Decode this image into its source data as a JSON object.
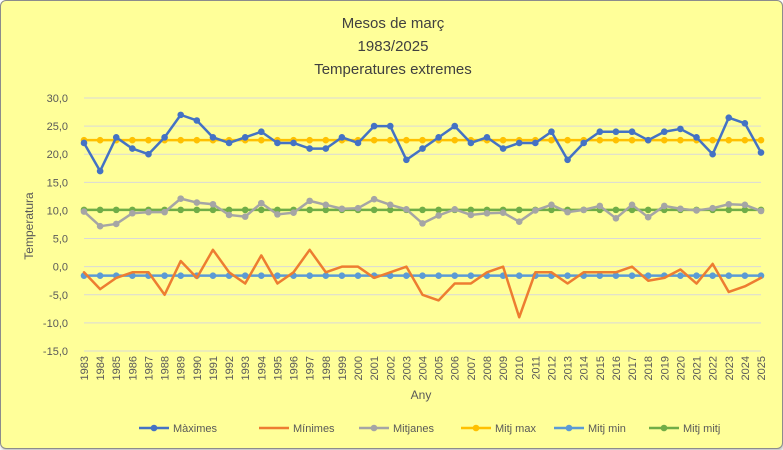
{
  "chart_data": {
    "type": "line",
    "title_lines": [
      "Mesos de març",
      "1983/2025",
      "Temperatures extremes"
    ],
    "xlabel": "Any",
    "ylabel": "Temperatura",
    "ylim": [
      -15,
      30
    ],
    "y_ticks": [
      "30,0",
      "25,0",
      "20,0",
      "15,0",
      "10,0",
      "5,0",
      "0,0",
      "-5,0",
      "-10,0",
      "-15,0"
    ],
    "grid": true,
    "legend_position": "bottom",
    "background_color": "#ffff99",
    "categories": [
      "1983",
      "1984",
      "1985",
      "1986",
      "1987",
      "1988",
      "1989",
      "1990",
      "1991",
      "1992",
      "1993",
      "1994",
      "1995",
      "1996",
      "1997",
      "1998",
      "1999",
      "2000",
      "2001",
      "2002",
      "2003",
      "2004",
      "2005",
      "2006",
      "2007",
      "2008",
      "2009",
      "2010",
      "2011",
      "2012",
      "2013",
      "2014",
      "2015",
      "2016",
      "2017",
      "2018",
      "2019",
      "2020",
      "2021",
      "2022",
      "2023",
      "2024",
      "2025"
    ],
    "series": [
      {
        "name": "Màximes",
        "color": "#4472c4",
        "markers": true,
        "values": [
          22,
          17,
          23,
          21,
          20,
          23,
          27,
          26,
          23,
          22,
          23,
          24,
          22,
          22,
          21,
          21,
          23,
          22,
          25,
          25,
          19,
          21,
          23,
          25,
          22,
          23,
          21,
          22,
          22,
          24,
          19,
          22,
          24,
          24,
          24,
          22.5,
          24,
          24.5,
          23,
          20,
          26.5,
          25.5,
          20.3
        ]
      },
      {
        "name": "Mínimes",
        "color": "#ed7d31",
        "markers": false,
        "values": [
          -1,
          -4,
          -2,
          -1,
          -1,
          -5,
          1,
          -2,
          3,
          -1,
          -3,
          2,
          -3,
          -1,
          3,
          -1,
          0,
          0,
          -2,
          -1,
          0,
          -5,
          -6,
          -3,
          -3,
          -1,
          0,
          -9,
          -1,
          -1,
          -3,
          -1,
          -1,
          -1,
          0,
          -2.5,
          -2,
          -0.5,
          -3,
          0.5,
          -4.5,
          -3.5,
          -2
        ]
      },
      {
        "name": "Mitjanes",
        "color": "#a5a5a5",
        "markers": true,
        "values": [
          9.8,
          7.2,
          7.6,
          9.5,
          9.7,
          9.7,
          12.1,
          11.4,
          11.1,
          9.2,
          8.9,
          11.3,
          9.3,
          9.6,
          11.7,
          11,
          10.3,
          10.4,
          12,
          11,
          10.2,
          7.7,
          9.1,
          10.2,
          9.2,
          9.5,
          9.6,
          8,
          10,
          11,
          9.7,
          10.1,
          10.8,
          8.6,
          11,
          8.8,
          10.8,
          10.3,
          10,
          10.4,
          11.1,
          11,
          9.9
        ]
      },
      {
        "name": "Mitj max",
        "color": "#ffc000",
        "markers": true,
        "constant": 22.5
      },
      {
        "name": "Mitj min",
        "color": "#5b9bd5",
        "markers": true,
        "constant": -1.6
      },
      {
        "name": "Mitj mitj",
        "color": "#70ad47",
        "markers": true,
        "constant": 10.1
      }
    ]
  }
}
